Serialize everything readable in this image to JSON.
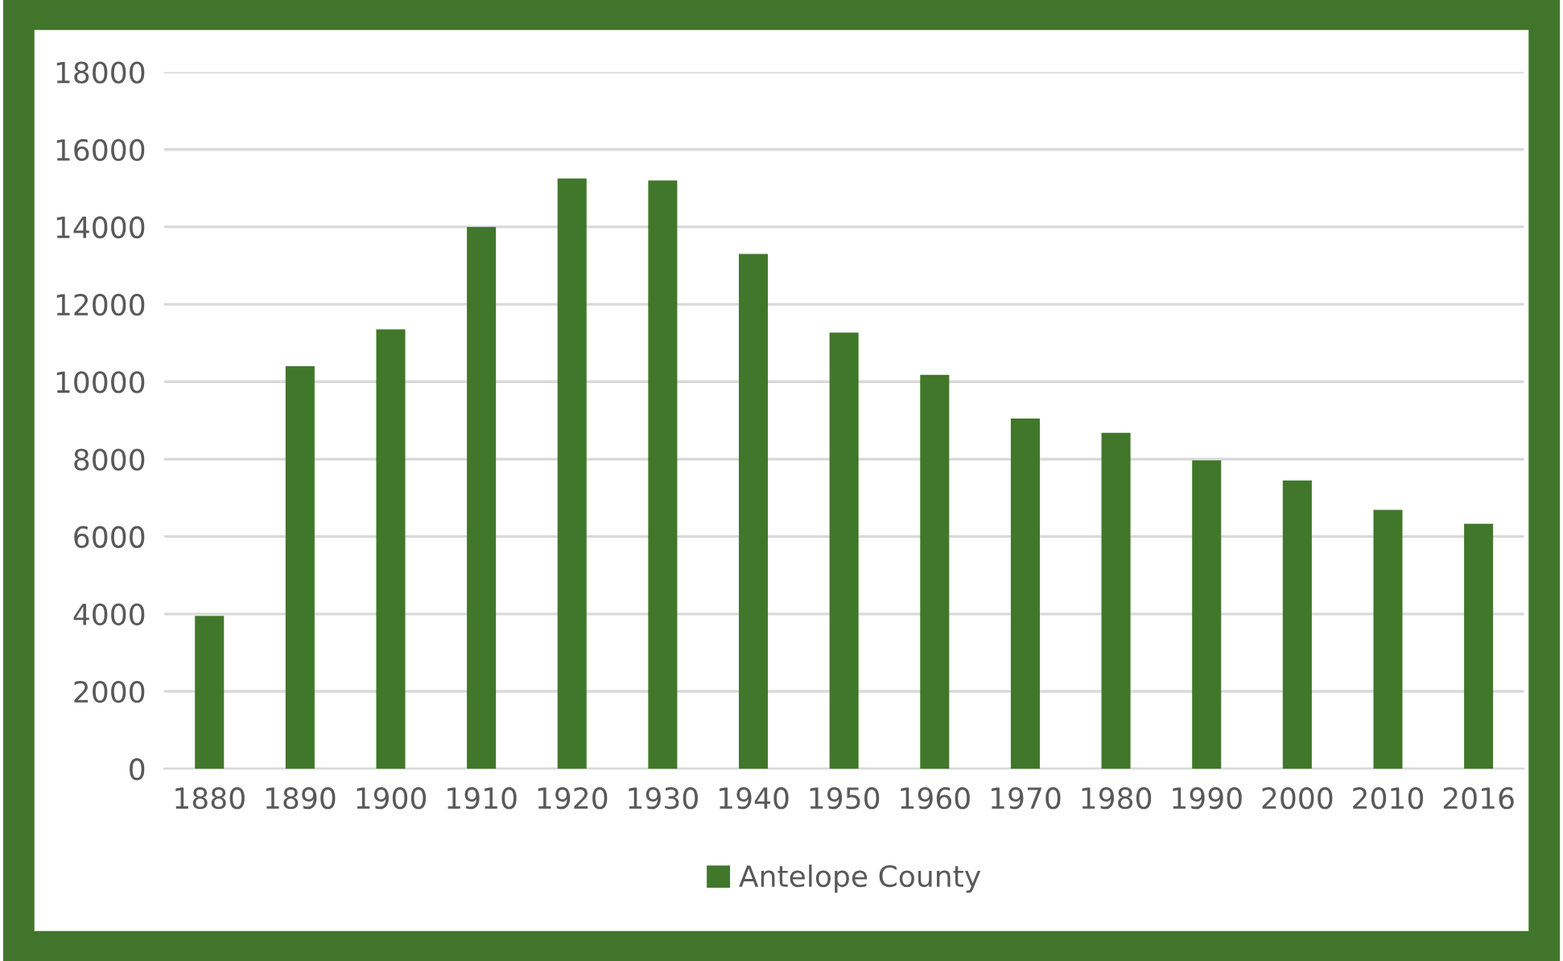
{
  "chart_data": {
    "type": "bar",
    "categories": [
      "1880",
      "1890",
      "1900",
      "1910",
      "1920",
      "1930",
      "1940",
      "1950",
      "1960",
      "1970",
      "1980",
      "1990",
      "2000",
      "2010",
      "2016"
    ],
    "series": [
      {
        "name": "Antelope County",
        "color": "#41772b",
        "values": [
          3950,
          10400,
          11350,
          14000,
          15250,
          15200,
          13300,
          11270,
          10180,
          9050,
          8680,
          7970,
          7450,
          6690,
          6330
        ]
      }
    ],
    "ylim": [
      0,
      18000
    ],
    "yticks": [
      0,
      2000,
      4000,
      6000,
      8000,
      10000,
      12000,
      14000,
      16000,
      18000
    ],
    "grid": "y",
    "legend": "bottom"
  }
}
